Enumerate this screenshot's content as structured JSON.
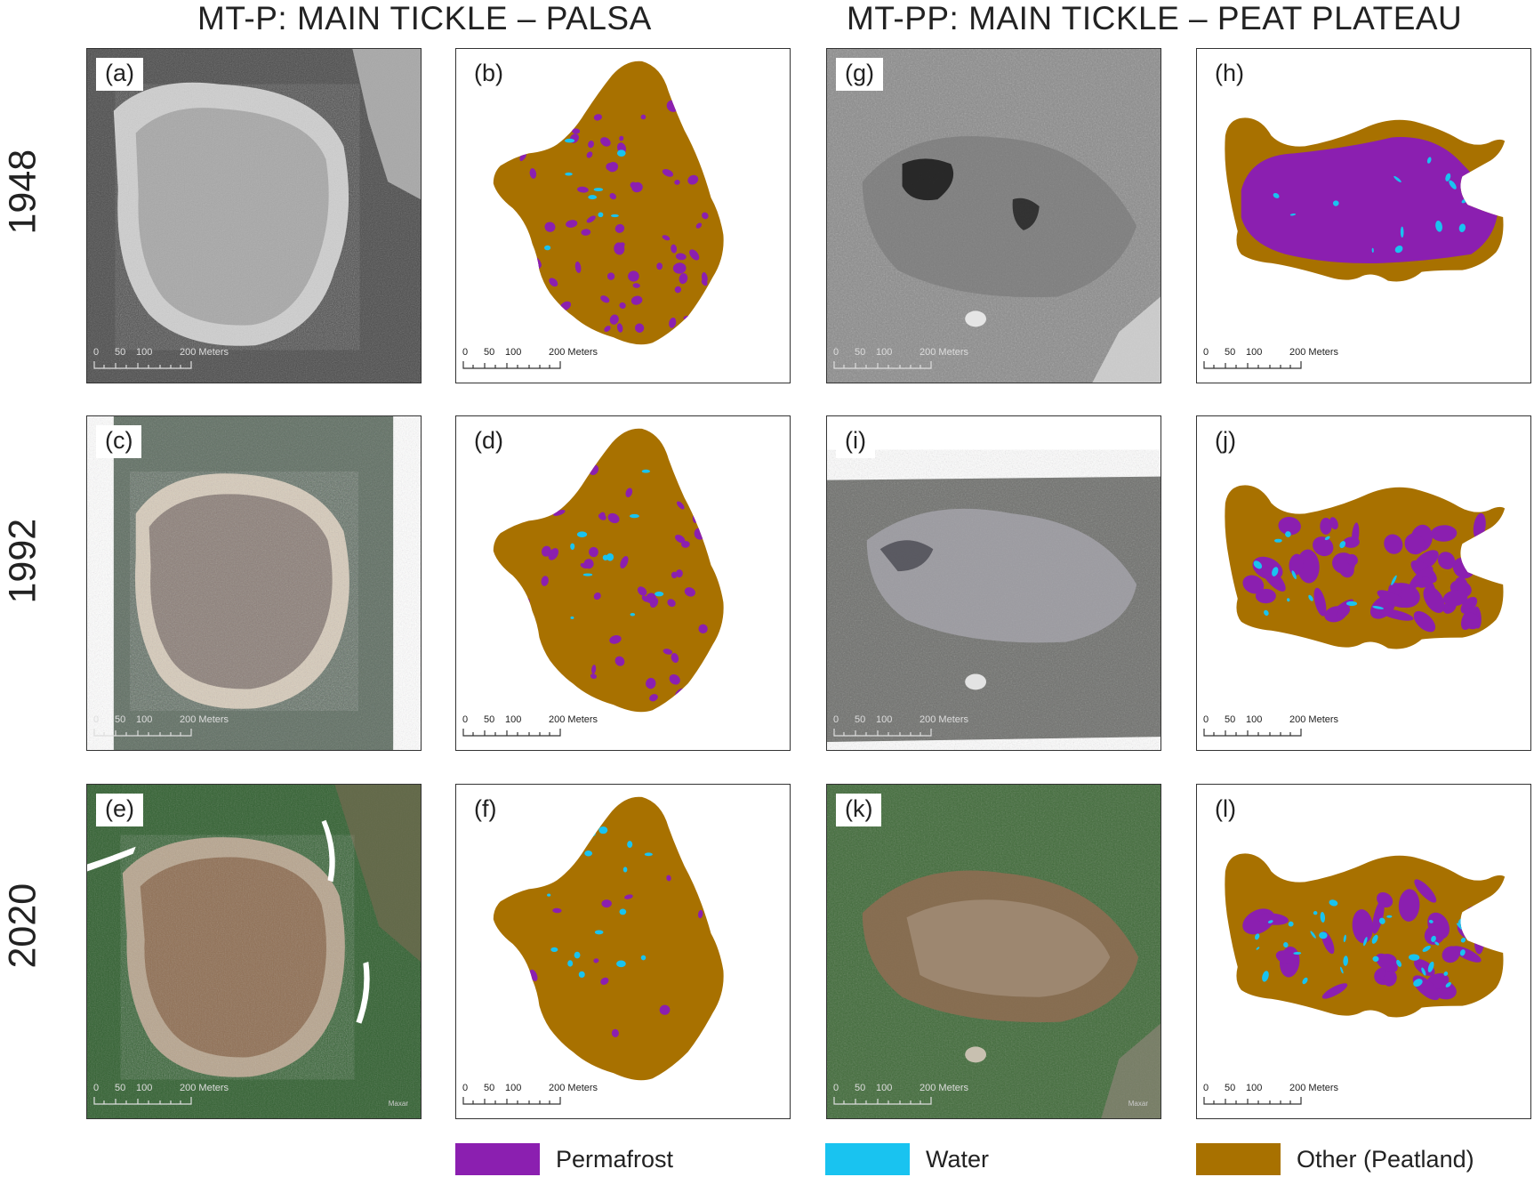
{
  "titles": {
    "left": "MT-P: MAIN TICKLE – PALSA",
    "right": "MT-PP: MAIN TICKLE – PEAT PLATEAU"
  },
  "years": [
    "1948",
    "1992",
    "2020"
  ],
  "panels": {
    "a": "(a)",
    "b": "(b)",
    "c": "(c)",
    "d": "(d)",
    "e": "(e)",
    "f": "(f)",
    "g": "(g)",
    "h": "(h)",
    "i": "(i)",
    "j": "(j)",
    "k": "(k)",
    "l": "(l)"
  },
  "scalebar": {
    "t0": "0",
    "t50": "50",
    "t100": "100",
    "t200": "200 Meters"
  },
  "legend": {
    "permafrost": {
      "label": "Permafrost",
      "color": "#8B1FB0"
    },
    "water": {
      "label": "Water",
      "color": "#19C3F0"
    },
    "other": {
      "label": "Other (Peatland)",
      "color": "#A87100"
    }
  },
  "watermark": "Maxar"
}
